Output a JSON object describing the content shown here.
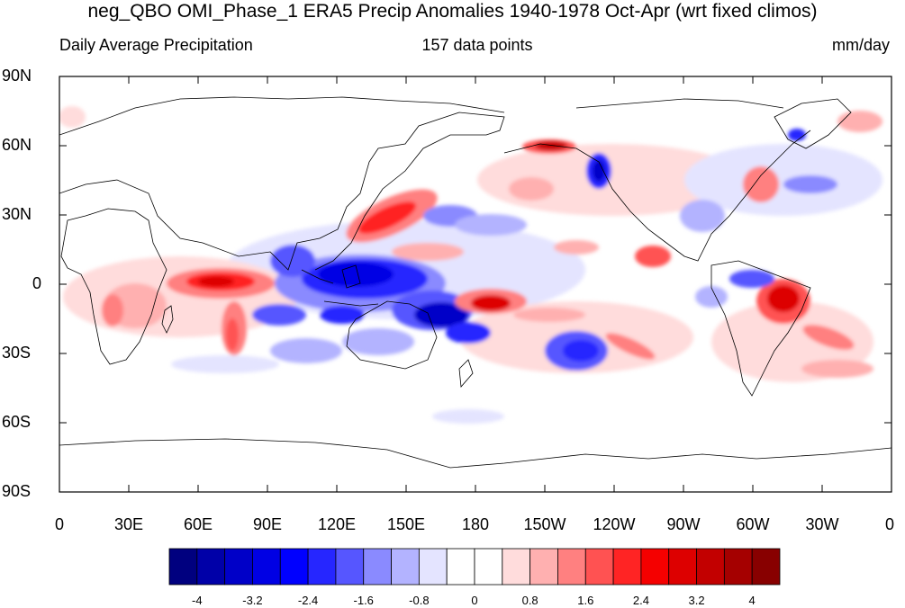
{
  "title": "neg_QBO OMI_Phase_1 ERA5 Precip Anomalies 1940-1978 Oct-Apr (wrt fixed climos)",
  "subtitle_left": "Daily Average Precipitation",
  "subtitle_center": "157 data points",
  "subtitle_right": "mm/day",
  "lat_labels": [
    "90N",
    "60N",
    "30N",
    "0",
    "30S",
    "60S",
    "90S"
  ],
  "lon_labels": [
    "0",
    "30E",
    "60E",
    "90E",
    "120E",
    "150E",
    "180",
    "150W",
    "120W",
    "90W",
    "60W",
    "30W",
    "0"
  ],
  "colorbar": {
    "colors": [
      "#00007f",
      "#0000a8",
      "#0000c8",
      "#0000e4",
      "#0000ff",
      "#2626ff",
      "#5656ff",
      "#8a8aff",
      "#b3b3ff",
      "#e4e4ff",
      "#ffffff",
      "#ffffff",
      "#ffdcdc",
      "#ffb0b0",
      "#ff8080",
      "#ff5252",
      "#ff2424",
      "#f50000",
      "#dd0000",
      "#c20000",
      "#a50000",
      "#880000"
    ],
    "labels": [
      "-4",
      "-3.2",
      "-2.4",
      "-1.6",
      "-0.8",
      "0",
      "0.8",
      "1.6",
      "2.4",
      "3.2",
      "4"
    ]
  }
}
